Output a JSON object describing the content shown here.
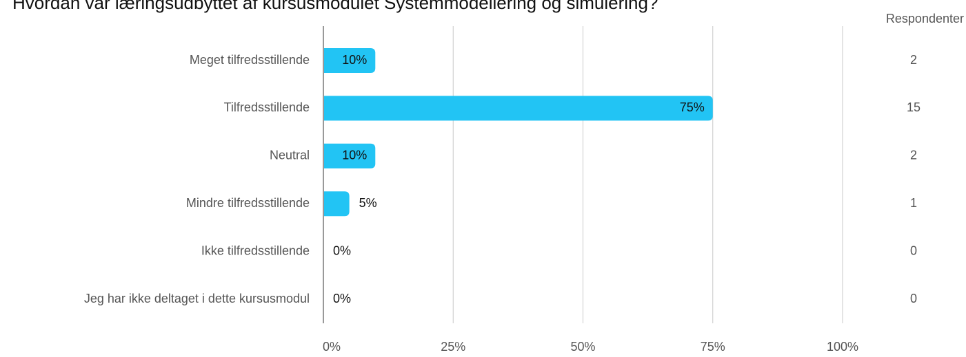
{
  "chart_data": {
    "type": "barh",
    "title": "Hvordan var læringsudbyttet af kursusmodulet Systemmodellering og simulering?",
    "categories": [
      "Meget tilfredsstillende",
      "Tilfredsstillende",
      "Neutral",
      "Mindre tilfredsstillende",
      "Ikke tilfredsstillende",
      "Jeg har ikke deltaget i dette kursusmodul"
    ],
    "values": [
      10,
      75,
      10,
      5,
      0,
      0
    ],
    "value_labels": [
      "10%",
      "75%",
      "10%",
      "5%",
      "0%",
      "0%"
    ],
    "color": "#22c4f4",
    "xlim": [
      0,
      100
    ],
    "xticks": [
      {
        "value": 0,
        "label": "0%"
      },
      {
        "value": 25,
        "label": "25%"
      },
      {
        "value": 50,
        "label": "50%"
      },
      {
        "value": 75,
        "label": "75%"
      },
      {
        "value": 100,
        "label": "100%"
      }
    ],
    "grid": true,
    "respondents": {
      "label": "Respondenter",
      "values": [
        2,
        15,
        2,
        1,
        0,
        0
      ]
    }
  }
}
